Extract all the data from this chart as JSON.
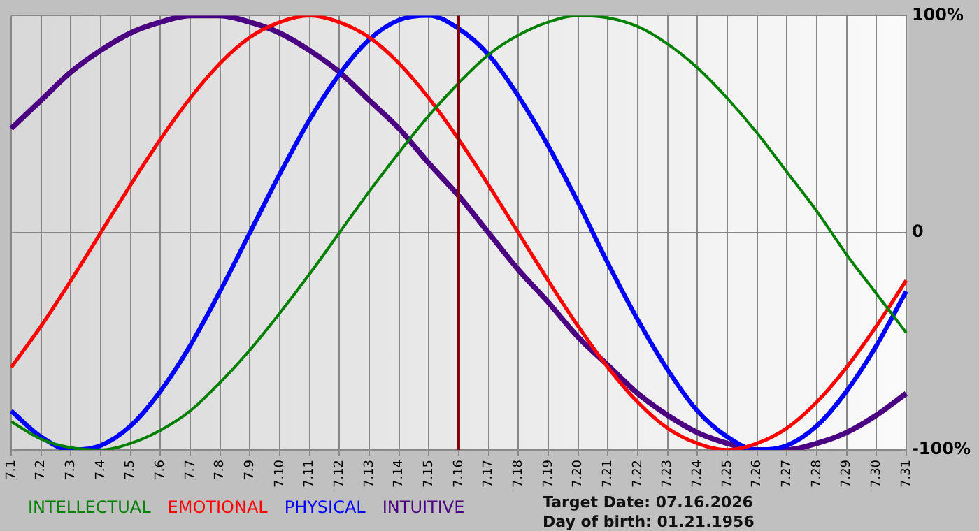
{
  "chart_data": {
    "type": "line",
    "categories": [
      "7.1",
      "7.2",
      "7.3",
      "7.4",
      "7.5",
      "7.6",
      "7.7",
      "7.8",
      "7.9",
      "7.10",
      "7.11",
      "7.12",
      "7.13",
      "7.14",
      "7.15",
      "7.16",
      "7.17",
      "7.18",
      "7.19",
      "7.20",
      "7.21",
      "7.22",
      "7.23",
      "7.24",
      "7.25",
      "7.26",
      "7.27",
      "7.28",
      "7.29",
      "7.30",
      "7.31"
    ],
    "series": [
      {
        "name": "INTELLECTUAL",
        "color": "#008000",
        "values": [
          -87,
          -95,
          -99,
          -100,
          -97,
          -91,
          -82,
          -69,
          -54,
          -37,
          -19,
          0,
          19,
          37,
          54,
          69,
          82,
          91,
          97,
          100,
          99,
          95,
          87,
          76,
          62,
          46,
          28,
          10,
          -10,
          -28,
          -46
        ]
      },
      {
        "name": "EMOTIONAL",
        "color": "#ff0000",
        "values": [
          -62,
          -43,
          -22,
          0,
          22,
          43,
          62,
          78,
          90,
          97,
          100,
          97,
          90,
          78,
          62,
          43,
          22,
          0,
          -22,
          -43,
          -62,
          -78,
          -90,
          -97,
          -100,
          -97,
          -90,
          -78,
          -62,
          -43,
          -22
        ]
      },
      {
        "name": "PHYSICAL",
        "color": "#0000ff",
        "values": [
          -82,
          -94,
          -100,
          -98,
          -89,
          -73,
          -52,
          -27,
          0,
          27,
          52,
          73,
          89,
          98,
          100,
          94,
          82,
          63,
          40,
          14,
          -14,
          -40,
          -63,
          -82,
          -94,
          -100,
          -98,
          -89,
          -73,
          -52,
          -27
        ]
      },
      {
        "name": "INTUITIVE",
        "color": "#4b0082",
        "values": [
          48,
          61,
          74,
          84,
          92,
          97,
          100,
          100,
          97,
          92,
          84,
          74,
          61,
          48,
          32,
          17,
          0,
          -17,
          -32,
          -48,
          -61,
          -74,
          -84,
          -92,
          -97,
          -100,
          -100,
          -97,
          -92,
          -84,
          -74
        ]
      }
    ],
    "ylim": [
      -100,
      100
    ],
    "yticks": [
      {
        "value": -100,
        "label": "-100%"
      },
      0,
      {
        "value": 100,
        "label": "100%"
      }
    ],
    "grid": true,
    "legend": "bottom left",
    "marker": "none",
    "line_style": "solid",
    "ref_lines": [
      {
        "axis": "x",
        "value": "7.16",
        "color": "#800000"
      }
    ],
    "annotations": [
      "Target Date: 07.16.2026",
      "Day of birth: 01.21.1956"
    ]
  }
}
